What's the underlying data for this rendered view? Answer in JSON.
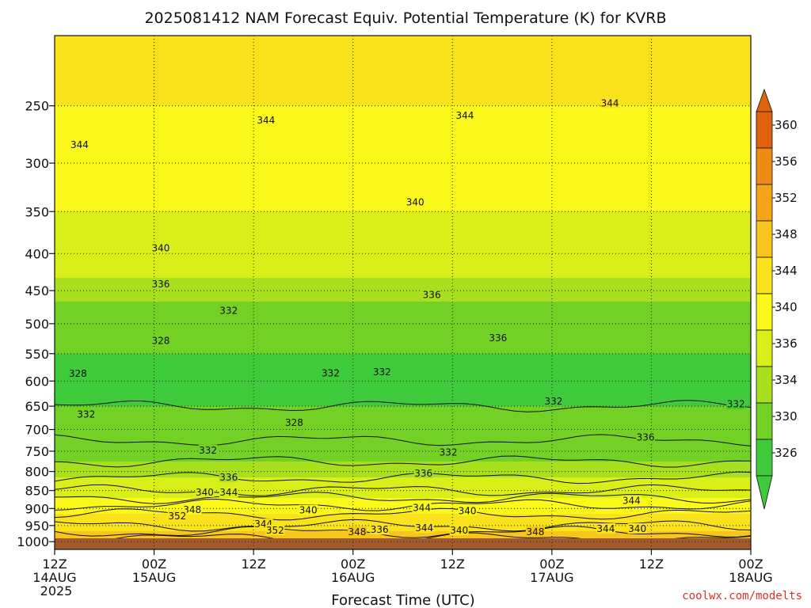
{
  "chart_data": {
    "type": "heatmap",
    "title": "2025081412 NAM Forecast Equiv. Potential Temperature (K) for KVRB",
    "xlabel": "Forecast Time (UTC)",
    "ylabel": "",
    "x_ticks": [
      {
        "hours": 0,
        "lines": [
          "12Z",
          "14AUG",
          "2025"
        ]
      },
      {
        "hours": 12,
        "lines": [
          "00Z",
          "15AUG"
        ]
      },
      {
        "hours": 24,
        "lines": [
          "12Z"
        ]
      },
      {
        "hours": 36,
        "lines": [
          "00Z",
          "16AUG"
        ]
      },
      {
        "hours": 48,
        "lines": [
          "12Z"
        ]
      },
      {
        "hours": 60,
        "lines": [
          "00Z",
          "17AUG"
        ]
      },
      {
        "hours": 72,
        "lines": [
          "12Z"
        ]
      },
      {
        "hours": 84,
        "lines": [
          "00Z",
          "18AUG"
        ]
      }
    ],
    "xlim_hours": [
      0,
      84
    ],
    "y_ticks": [
      250,
      300,
      350,
      400,
      450,
      500,
      550,
      600,
      650,
      700,
      750,
      800,
      850,
      900,
      950,
      1000
    ],
    "ylim_hpa": [
      1025,
      200
    ],
    "y_scale": "log",
    "grid": true,
    "colorbar": {
      "labels": [
        360,
        356,
        352,
        348,
        344,
        340,
        336,
        334,
        330,
        326
      ],
      "colors": [
        "#e0620c",
        "#ef8a12",
        "#f5a41a",
        "#f8c41e",
        "#fae21c",
        "#fbf81c",
        "#d9ef1a",
        "#a8df1e",
        "#72d124",
        "#3fca3c"
      ],
      "extend": "both",
      "position": "right"
    },
    "profile": [
      {
        "p": 1010,
        "k": 352
      },
      {
        "p": 950,
        "k": 346
      },
      {
        "p": 900,
        "k": 343
      },
      {
        "p": 850,
        "k": 338
      },
      {
        "p": 800,
        "k": 335
      },
      {
        "p": 750,
        "k": 333
      },
      {
        "p": 700,
        "k": 331
      },
      {
        "p": 650,
        "k": 330
      },
      {
        "p": 600,
        "k": 329
      },
      {
        "p": 550,
        "k": 330
      },
      {
        "p": 500,
        "k": 332
      },
      {
        "p": 450,
        "k": 335
      },
      {
        "p": 400,
        "k": 338
      },
      {
        "p": 350,
        "k": 340
      },
      {
        "p": 300,
        "k": 342
      },
      {
        "p": 250,
        "k": 344
      },
      {
        "p": 220,
        "k": 346
      }
    ],
    "contour_labels": [
      {
        "text": "344",
        "hours": 3,
        "p": 283
      },
      {
        "text": "344",
        "hours": 25.5,
        "p": 262
      },
      {
        "text": "344",
        "hours": 49.5,
        "p": 258
      },
      {
        "text": "344",
        "hours": 67,
        "p": 248
      },
      {
        "text": "340",
        "hours": 43.5,
        "p": 340
      },
      {
        "text": "340",
        "hours": 12.8,
        "p": 393
      },
      {
        "text": "336",
        "hours": 12.8,
        "p": 441
      },
      {
        "text": "336",
        "hours": 45.5,
        "p": 456
      },
      {
        "text": "336",
        "hours": 53.5,
        "p": 523
      },
      {
        "text": "332",
        "hours": 21,
        "p": 480
      },
      {
        "text": "332",
        "hours": 33.3,
        "p": 585
      },
      {
        "text": "332",
        "hours": 39.5,
        "p": 583
      },
      {
        "text": "332",
        "hours": 60.2,
        "p": 640
      },
      {
        "text": "332",
        "hours": 82.2,
        "p": 646
      },
      {
        "text": "332",
        "hours": 3.8,
        "p": 667
      },
      {
        "text": "332",
        "hours": 18.5,
        "p": 748
      },
      {
        "text": "332",
        "hours": 47.5,
        "p": 753
      },
      {
        "text": "328",
        "hours": 12.8,
        "p": 528
      },
      {
        "text": "328",
        "hours": 2.8,
        "p": 586
      },
      {
        "text": "328",
        "hours": 28.9,
        "p": 685
      },
      {
        "text": "336",
        "hours": 21,
        "p": 815
      },
      {
        "text": "336",
        "hours": 44.5,
        "p": 805
      },
      {
        "text": "336",
        "hours": 71.3,
        "p": 718
      },
      {
        "text": "340",
        "hours": 18.1,
        "p": 855
      },
      {
        "text": "344",
        "hours": 21,
        "p": 855
      },
      {
        "text": "348",
        "hours": 16.6,
        "p": 904
      },
      {
        "text": "352",
        "hours": 14.8,
        "p": 922
      },
      {
        "text": "340",
        "hours": 30.6,
        "p": 905
      },
      {
        "text": "344",
        "hours": 25.2,
        "p": 946
      },
      {
        "text": "352",
        "hours": 26.6,
        "p": 965
      },
      {
        "text": "344",
        "hours": 44.3,
        "p": 898
      },
      {
        "text": "340",
        "hours": 49.8,
        "p": 907
      },
      {
        "text": "344",
        "hours": 69.6,
        "p": 878
      },
      {
        "text": "348",
        "hours": 36.5,
        "p": 970
      },
      {
        "text": "336",
        "hours": 39.2,
        "p": 963
      },
      {
        "text": "344",
        "hours": 44.6,
        "p": 958
      },
      {
        "text": "340",
        "hours": 48.8,
        "p": 965
      },
      {
        "text": "348",
        "hours": 58,
        "p": 970
      },
      {
        "text": "344",
        "hours": 66.5,
        "p": 960
      },
      {
        "text": "340",
        "hours": 70.3,
        "p": 960
      }
    ]
  },
  "credit": "coolwx.com/modelts"
}
